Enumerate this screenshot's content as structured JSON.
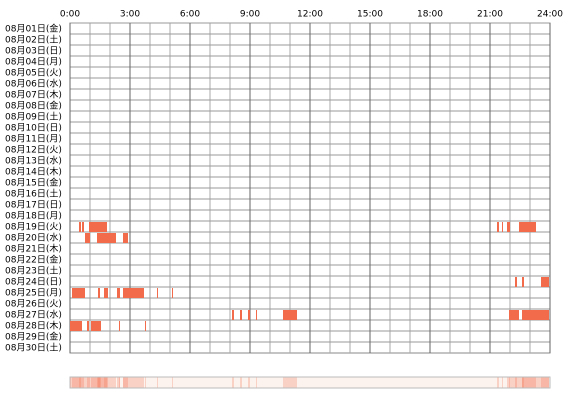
{
  "chart_data": {
    "type": "timeline",
    "categories": [
      "08月01日(金)",
      "08月02日(土)",
      "08月03日(日)",
      "08月04日(月)",
      "08月05日(火)",
      "08月06日(水)",
      "08月07日(木)",
      "08月08日(金)",
      "08月09日(土)",
      "08月10日(日)",
      "08月11日(月)",
      "08月12日(火)",
      "08月13日(水)",
      "08月14日(木)",
      "08月15日(金)",
      "08月16日(土)",
      "08月17日(日)",
      "08月18日(月)",
      "08月19日(火)",
      "08月20日(水)",
      "08月21日(木)",
      "08月22日(金)",
      "08月23日(土)",
      "08月24日(日)",
      "08月25日(月)",
      "08月26日(火)",
      "08月27日(水)",
      "08月28日(木)",
      "08月29日(金)",
      "08月30日(土)"
    ],
    "xlim": [
      0,
      24
    ],
    "xticks": [
      {
        "value": 0,
        "label": "0:00"
      },
      {
        "value": 3,
        "label": "3:00"
      },
      {
        "value": 6,
        "label": "6:00"
      },
      {
        "value": 9,
        "label": "9:00"
      },
      {
        "value": 12,
        "label": "12:00"
      },
      {
        "value": 15,
        "label": "15:00"
      },
      {
        "value": 18,
        "label": "18:00"
      },
      {
        "value": 21,
        "label": "21:00"
      },
      {
        "value": 24,
        "label": "24:00"
      }
    ],
    "color": "#f26b4a",
    "segments": [
      [],
      [],
      [],
      [],
      [],
      [],
      [],
      [],
      [],
      [],
      [],
      [],
      [],
      [],
      [],
      [],
      [],
      [],
      [
        [
          0.45,
          0.55
        ],
        [
          0.6,
          0.7
        ],
        [
          0.95,
          1.85
        ],
        [
          21.35,
          21.45
        ],
        [
          21.6,
          21.65
        ],
        [
          21.85,
          22.0
        ],
        [
          22.45,
          23.3
        ]
      ],
      [
        [
          0.75,
          1.0
        ],
        [
          1.35,
          2.3
        ],
        [
          2.65,
          2.9
        ]
      ],
      [],
      [],
      [],
      [
        [
          22.25,
          22.35
        ],
        [
          22.6,
          22.7
        ],
        [
          23.55,
          23.95
        ]
      ],
      [
        [
          0.1,
          0.75
        ],
        [
          1.4,
          1.5
        ],
        [
          1.7,
          1.9
        ],
        [
          2.35,
          2.5
        ],
        [
          2.65,
          3.7
        ],
        [
          4.35,
          4.4
        ],
        [
          5.1,
          5.15
        ]
      ],
      [],
      [
        [
          8.1,
          8.2
        ],
        [
          8.5,
          8.6
        ],
        [
          8.9,
          9.0
        ],
        [
          9.3,
          9.35
        ],
        [
          10.65,
          11.35
        ],
        [
          21.95,
          22.45
        ],
        [
          22.6,
          23.95
        ]
      ],
      [
        [
          0.0,
          0.6
        ],
        [
          0.85,
          0.95
        ],
        [
          1.05,
          1.55
        ],
        [
          2.45,
          2.5
        ],
        [
          3.75,
          3.8
        ]
      ],
      [],
      []
    ]
  }
}
